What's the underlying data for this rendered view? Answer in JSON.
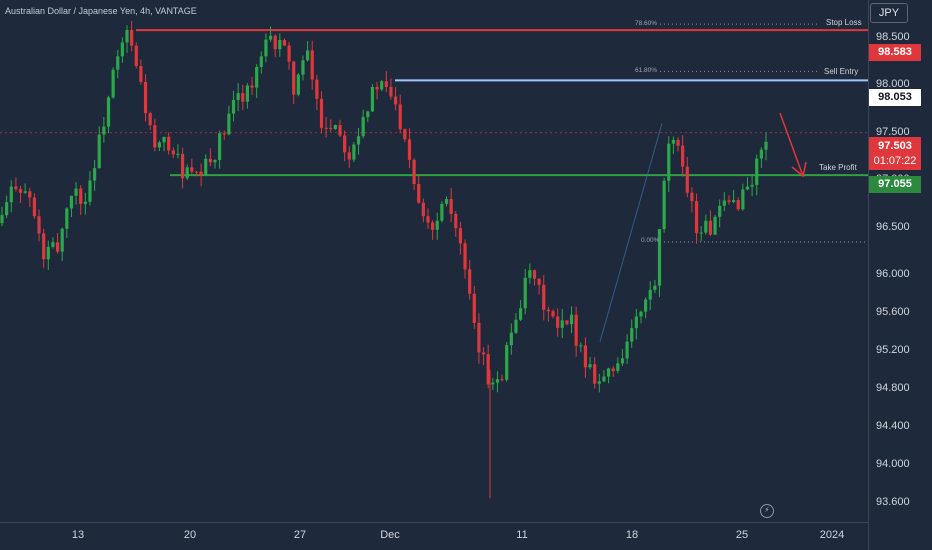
{
  "header": {
    "title": "Australian Dollar / Japanese Yen, 4h, VANTAGE"
  },
  "price_axis": {
    "currency": "JPY",
    "ticks": [
      "93.600",
      "94.000",
      "94.400",
      "94.800",
      "95.200",
      "95.600",
      "96.000",
      "96.500",
      "97.000",
      "97.500",
      "98.000",
      "98.500"
    ]
  },
  "time_axis": {
    "ticks": [
      "13",
      "20",
      "27",
      "Dec",
      "11",
      "18",
      "25",
      "2024"
    ]
  },
  "levels": {
    "stop_loss": {
      "label": "Stop Loss",
      "price": "98.583",
      "fib": "78.60%",
      "color": "#e0373c"
    },
    "sell_entry": {
      "label": "Sell Entry",
      "price": "98.053",
      "fib": "61.80%",
      "color": "#9ec5ff"
    },
    "take_profit": {
      "label": "Take Profit",
      "price": "97.055",
      "color": "#30a040"
    },
    "fib_zero": {
      "fib": "0.00%"
    }
  },
  "current": {
    "price": "97.503",
    "countdown": "01:07:22",
    "color": "#e0373c"
  },
  "colors": {
    "bull": "#2ba84a",
    "bear": "#e0373c",
    "background": "#1e2a3b"
  },
  "icons": {
    "replay": "replay-icon",
    "forecast_arrow": "arrow-down-right-icon"
  },
  "chart_data": {
    "type": "candlestick",
    "symbol": "AUD/JPY",
    "timeframe": "4h",
    "y_range": [
      93.4,
      98.9
    ],
    "levels": {
      "stop_loss": 98.583,
      "sell_entry": 98.053,
      "take_profit": 97.055,
      "current": 97.503,
      "fib_zero": 96.35
    },
    "close_path": [
      [
        0,
        96.6
      ],
      [
        3,
        97.0
      ],
      [
        6,
        96.8
      ],
      [
        9,
        96.2
      ],
      [
        12,
        96.3
      ],
      [
        15,
        96.9
      ],
      [
        18,
        96.8
      ],
      [
        21,
        97.4
      ],
      [
        24,
        98.1
      ],
      [
        27,
        98.55
      ],
      [
        30,
        98.0
      ],
      [
        33,
        97.3
      ],
      [
        36,
        97.4
      ],
      [
        39,
        97.1
      ],
      [
        42,
        97.0
      ],
      [
        45,
        97.2
      ],
      [
        48,
        97.5
      ],
      [
        51,
        97.9
      ],
      [
        54,
        98.0
      ],
      [
        57,
        98.4
      ],
      [
        60,
        98.5
      ],
      [
        63,
        98.0
      ],
      [
        66,
        98.3
      ],
      [
        69,
        97.6
      ],
      [
        72,
        97.6
      ],
      [
        75,
        97.3
      ],
      [
        78,
        97.7
      ],
      [
        81,
        98.0
      ],
      [
        84,
        97.9
      ],
      [
        87,
        97.5
      ],
      [
        90,
        96.8
      ],
      [
        93,
        96.5
      ],
      [
        96,
        96.9
      ],
      [
        99,
        96.3
      ],
      [
        102,
        95.4
      ],
      [
        105,
        94.9
      ],
      [
        108,
        95.0
      ],
      [
        111,
        95.6
      ],
      [
        114,
        96.0
      ],
      [
        117,
        95.7
      ],
      [
        120,
        95.4
      ],
      [
        123,
        95.5
      ],
      [
        126,
        95.1
      ],
      [
        129,
        94.9
      ],
      [
        132,
        95.0
      ],
      [
        135,
        95.3
      ],
      [
        138,
        95.6
      ],
      [
        141,
        95.9
      ],
      [
        144,
        97.4
      ],
      [
        147,
        97.2
      ],
      [
        150,
        96.5
      ],
      [
        153,
        96.5
      ],
      [
        156,
        96.7
      ],
      [
        159,
        96.8
      ],
      [
        162,
        97.0
      ],
      [
        165,
        97.5
      ]
    ]
  }
}
